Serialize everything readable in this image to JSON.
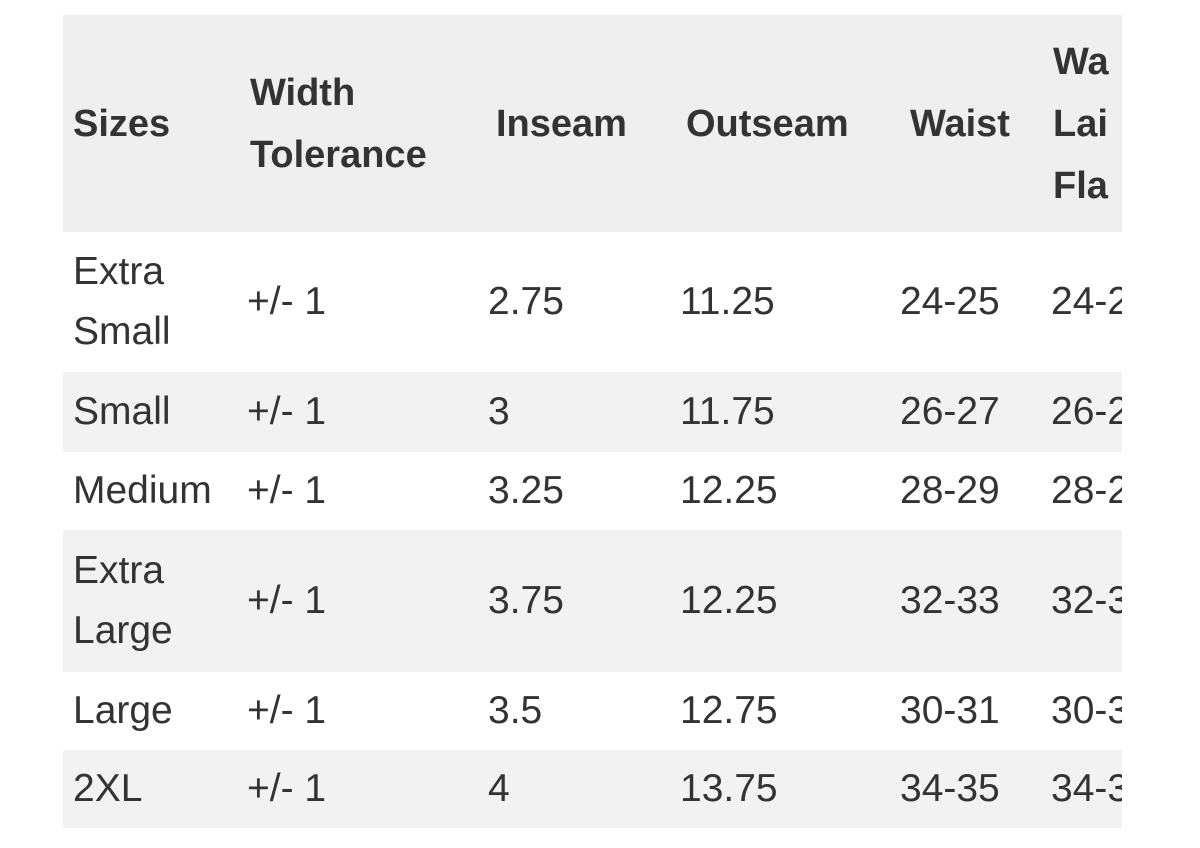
{
  "table": {
    "header": [
      "Sizes",
      "Width Tolerance",
      "Inseam",
      "Outseam",
      "Waist",
      "Wa Lai Fla"
    ],
    "rows": [
      [
        "Extra Small",
        "+/- 1",
        "2.75",
        "11.25",
        "24-25",
        "24-2"
      ],
      [
        "Small",
        "+/- 1",
        "3",
        "11.75",
        "26-27",
        "26-2"
      ],
      [
        "Medium",
        "+/- 1",
        "3.25",
        "12.25",
        "28-29",
        "28-2"
      ],
      [
        "Extra Large",
        "+/- 1",
        "3.75",
        "12.25",
        "32-33",
        "32-3"
      ],
      [
        "Large",
        "+/- 1",
        "3.5",
        "12.75",
        "30-31",
        "30-3"
      ],
      [
        "2XL",
        "+/- 1",
        "4",
        "13.75",
        "34-35",
        "34-3"
      ]
    ]
  }
}
